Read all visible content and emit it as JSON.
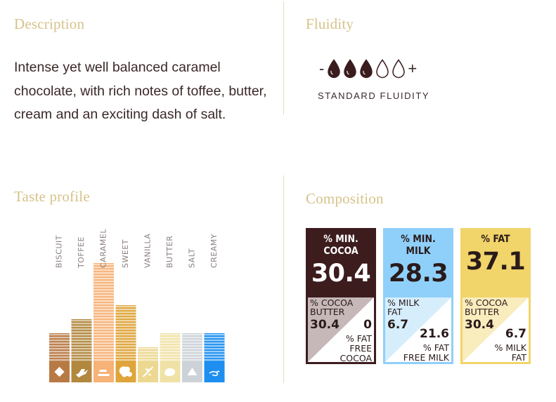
{
  "description": {
    "heading": "Description",
    "text": "Intense yet well balanced caramel chocolate, with rich notes of toffee, butter, cream and an exciting dash of salt."
  },
  "fluidity": {
    "heading": "Fluidity",
    "minus": "-",
    "plus": "+",
    "level": 3,
    "max": 5,
    "label": "STANDARD FLUIDITY"
  },
  "taste_profile": {
    "heading": "Taste profile"
  },
  "chart_data": {
    "type": "bar",
    "title": "",
    "categories": [
      "BISCUIT",
      "TOFFEE",
      "CARAMEL",
      "SWEET",
      "VANILLA",
      "BUTTER",
      "SALT",
      "CREAMY"
    ],
    "values": [
      2,
      3,
      7,
      4,
      1,
      2,
      2,
      2
    ],
    "ylim": [
      0,
      7
    ],
    "grid": false,
    "colors": [
      "#b87a45",
      "#b2883f",
      "#f6b277",
      "#dfa43a",
      "#ecd890",
      "#f0e2a6",
      "#ccd2d8",
      "#1e8ff0"
    ],
    "icons": [
      "biscuit-icon",
      "toffee-icon",
      "caramel-icon",
      "sweet-icon",
      "vanilla-icon",
      "butter-icon",
      "salt-icon",
      "creamy-icon"
    ]
  },
  "composition": {
    "heading": "Composition",
    "cards": [
      {
        "top_label_1": "% MIN.",
        "top_label_2": "COCOA",
        "top_value": "30.4",
        "bl_label_1": "% COCOA",
        "bl_label_2": "BUTTER",
        "bl_value": "30.4",
        "br_value": "0",
        "br_label_1": "% FAT",
        "br_label_2": "FREE",
        "br_label_3": "COCOA",
        "colors": {
          "top": "#3d1c1e",
          "top_text": "#ffffff",
          "tri_a": "#c6b8b8",
          "tri_b": "#ffffff",
          "border": "#3d1c1e",
          "text": "#2a1a1a"
        }
      },
      {
        "top_label_1": "% MIN.",
        "top_label_2": "MILK",
        "top_value": "28.3",
        "bl_label_1": "% MILK",
        "bl_label_2": "FAT",
        "bl_value": "6.7",
        "br_value": "21.6",
        "br_label_1": "% FAT",
        "br_label_2": "FREE MILK",
        "br_label_3": "",
        "colors": {
          "top": "#8fd0fa",
          "top_text": "#2a1a1a",
          "tri_a": "#d6eefc",
          "tri_b": "#ffffff",
          "border": "#8fd0fa",
          "text": "#2a1a1a"
        }
      },
      {
        "top_label_1": "% FAT",
        "top_label_2": "",
        "top_value": "37.1",
        "bl_label_1": "% COCOA",
        "bl_label_2": "BUTTER",
        "bl_value": "30.4",
        "br_value": "6.7",
        "br_label_1": "% MILK",
        "br_label_2": "FAT",
        "br_label_3": "",
        "colors": {
          "top": "#f1d46a",
          "top_text": "#2a1a1a",
          "tri_a": "#f9ecbd",
          "tri_b": "#ffffff",
          "border": "#f1d46a",
          "text": "#2a1a1a"
        }
      }
    ]
  }
}
